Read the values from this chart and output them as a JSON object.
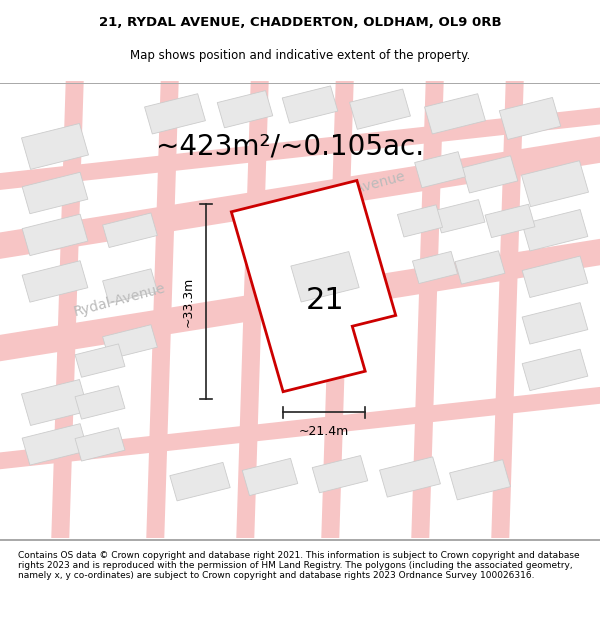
{
  "title_line1": "21, RYDAL AVENUE, CHADDERTON, OLDHAM, OL9 0RB",
  "title_line2": "Map shows position and indicative extent of the property.",
  "area_label": "~423m²/~0.105ac.",
  "plot_number": "21",
  "width_label": "~21.4m",
  "height_label": "~33.3m",
  "footer_text": "Contains OS data © Crown copyright and database right 2021. This information is subject to Crown copyright and database rights 2023 and is reproduced with the permission of HM Land Registry. The polygons (including the associated geometry, namely x, y co-ordinates) are subject to Crown copyright and database rights 2023 Ordnance Survey 100026316.",
  "bg_color": "#f5f0ee",
  "map_bg": "#f5f0ee",
  "plot_fill": "#ffffff",
  "plot_outline": "#cc0000",
  "road_color_light": "#f7c5c5",
  "road_color_dark": "#e08080",
  "building_fill": "#e8e8e8",
  "building_stroke": "#cccccc",
  "street_label_color": "#bbbbbb",
  "dim_line_color": "#222222",
  "title_fontsize": 9.5,
  "subtitle_fontsize": 8.5,
  "area_fontsize": 20,
  "plot_num_fontsize": 22,
  "dim_fontsize": 9,
  "footer_fontsize": 6.5
}
